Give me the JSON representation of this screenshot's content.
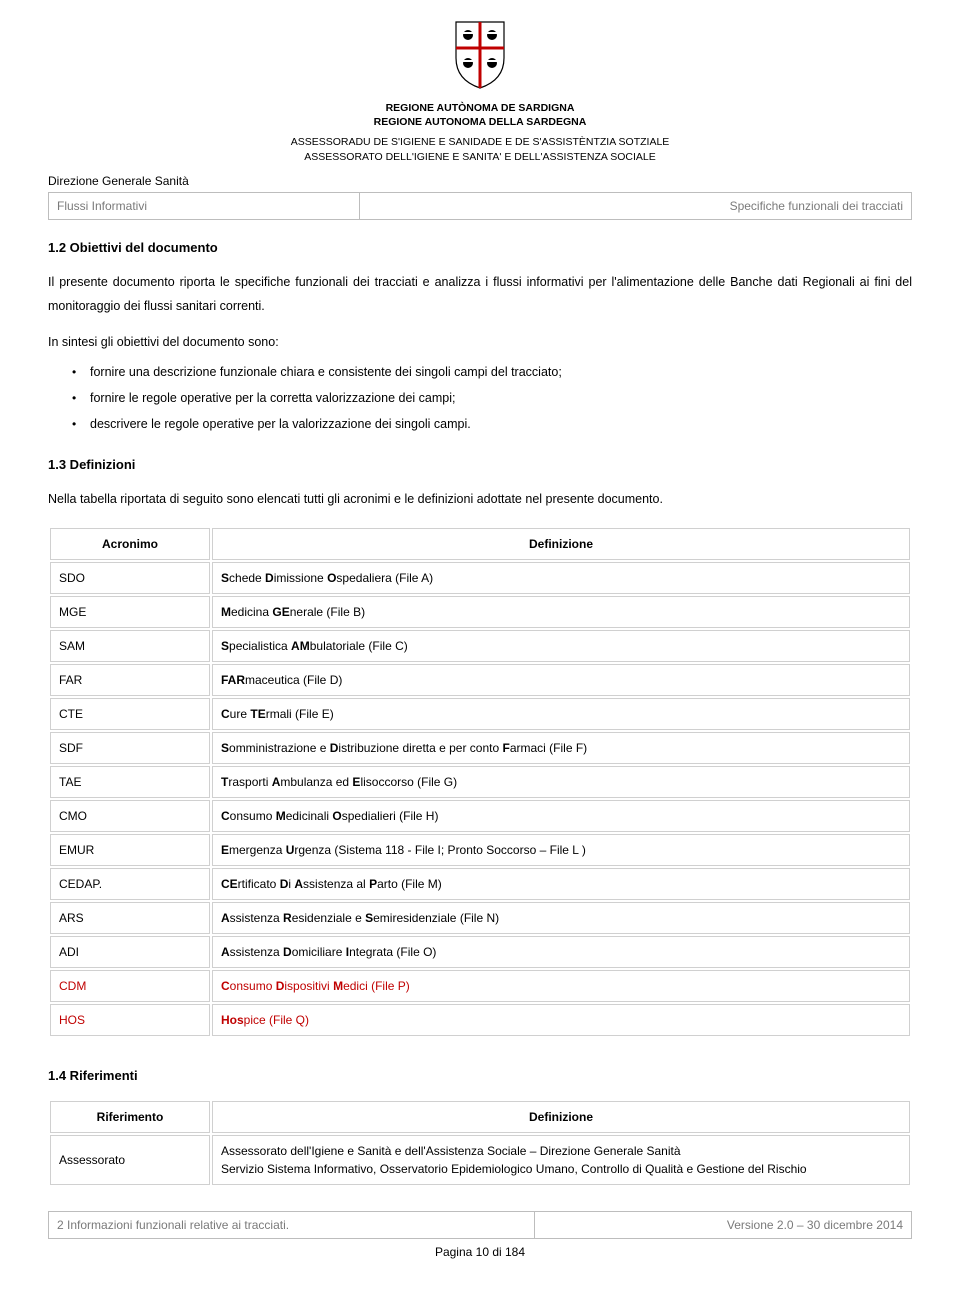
{
  "header": {
    "region_line1": "REGIONE AUTÒNOMA DE SARDIGNA",
    "region_line2": "REGIONE AUTONOMA DELLA SARDEGNA",
    "assr_line1": "ASSESSORADU DE S'IGIENE E SANIDADE E DE S'ASSISTÈNTZIA SOTZIALE",
    "assr_line2": "ASSESSORATO DELL'IGIENE E SANITA' E DELL'ASSISTENZA SOCIALE",
    "dept": "Direzione Generale Sanità",
    "left_cell": "Flussi Informativi",
    "right_cell": "Specifiche funzionali dei tracciati"
  },
  "s12": {
    "title": "1.2 Obiettivi del documento",
    "para": "Il presente documento riporta le specifiche funzionali dei tracciati e analizza i flussi informativi per l'alimentazione delle Banche dati Regionali ai fini del monitoraggio dei flussi sanitari correnti.",
    "intro": "In sintesi gli obiettivi del documento sono:",
    "bullets": [
      "fornire una descrizione funzionale chiara e consistente dei singoli campi del tracciato;",
      "fornire le regole operative per la corretta valorizzazione dei campi;",
      "descrivere le regole operative per la valorizzazione dei singoli campi."
    ]
  },
  "s13": {
    "title": "1.3 Definizioni",
    "intro": "Nella tabella riportata di seguito sono elencati tutti gli acronimi e le definizioni adottate nel presente documento.",
    "th_acr": "Acronimo",
    "th_def": "Definizione",
    "rows": [
      {
        "a": "SDO",
        "d": "Schede Dimissione Ospedaliera (File A)",
        "red": false
      },
      {
        "a": "MGE",
        "d": "Medicina GEnerale (File B)",
        "red": false
      },
      {
        "a": "SAM",
        "d": "Specialistica AMbulatoriale (File C)",
        "red": false
      },
      {
        "a": "FAR",
        "d": "FARmaceutica (File D)",
        "red": false
      },
      {
        "a": "CTE",
        "d": "Cure TErmali (File E)",
        "red": false
      },
      {
        "a": "SDF",
        "d": "Somministrazione e Distribuzione diretta e per conto Farmaci (File F)",
        "red": false
      },
      {
        "a": "TAE",
        "d": "Trasporti Ambulanza ed Elisoccorso (File G)",
        "red": false
      },
      {
        "a": "CMO",
        "d": "Consumo Medicinali Ospedialieri (File H)",
        "red": false
      },
      {
        "a": "EMUR",
        "d": "Emergenza Urgenza (Sistema 118 - File I; Pronto Soccorso – File L )",
        "red": false
      },
      {
        "a": "CEDAP.",
        "d": "CErtificato Di Assistenza al Parto (File M)",
        "red": false
      },
      {
        "a": "ARS",
        "d": "Assistenza Residenziale e Semiresidenziale (File N)",
        "red": false
      },
      {
        "a": "ADI",
        "d": "Assistenza Domiciliare Integrata (File O)",
        "red": false
      },
      {
        "a": "CDM",
        "d": "Consumo Dispositivi Medici (File P)",
        "red": true
      },
      {
        "a": "HOS",
        "d": "Hospice (File Q)",
        "red": true
      }
    ]
  },
  "s14": {
    "title": "1.4 Riferimenti",
    "th_ref": "Riferimento",
    "th_def": "Definizione",
    "row": {
      "ref": "Assessorato",
      "line1": "Assessorato dell'Igiene e Sanità e dell'Assistenza Sociale – Direzione Generale Sanità",
      "line2": "Servizio Sistema Informativo, Osservatorio Epidemiologico Umano, Controllo di Qualità e Gestione del Rischio"
    }
  },
  "footer": {
    "left": "2 Informazioni funzionali relative ai tracciati.",
    "right": "Versione 2.0 – 30 dicembre 2014",
    "page": "Pagina 10 di 184"
  },
  "colors": {
    "border": "#d0d0d0",
    "muted": "#7a7a7a",
    "red": "#c00000"
  }
}
